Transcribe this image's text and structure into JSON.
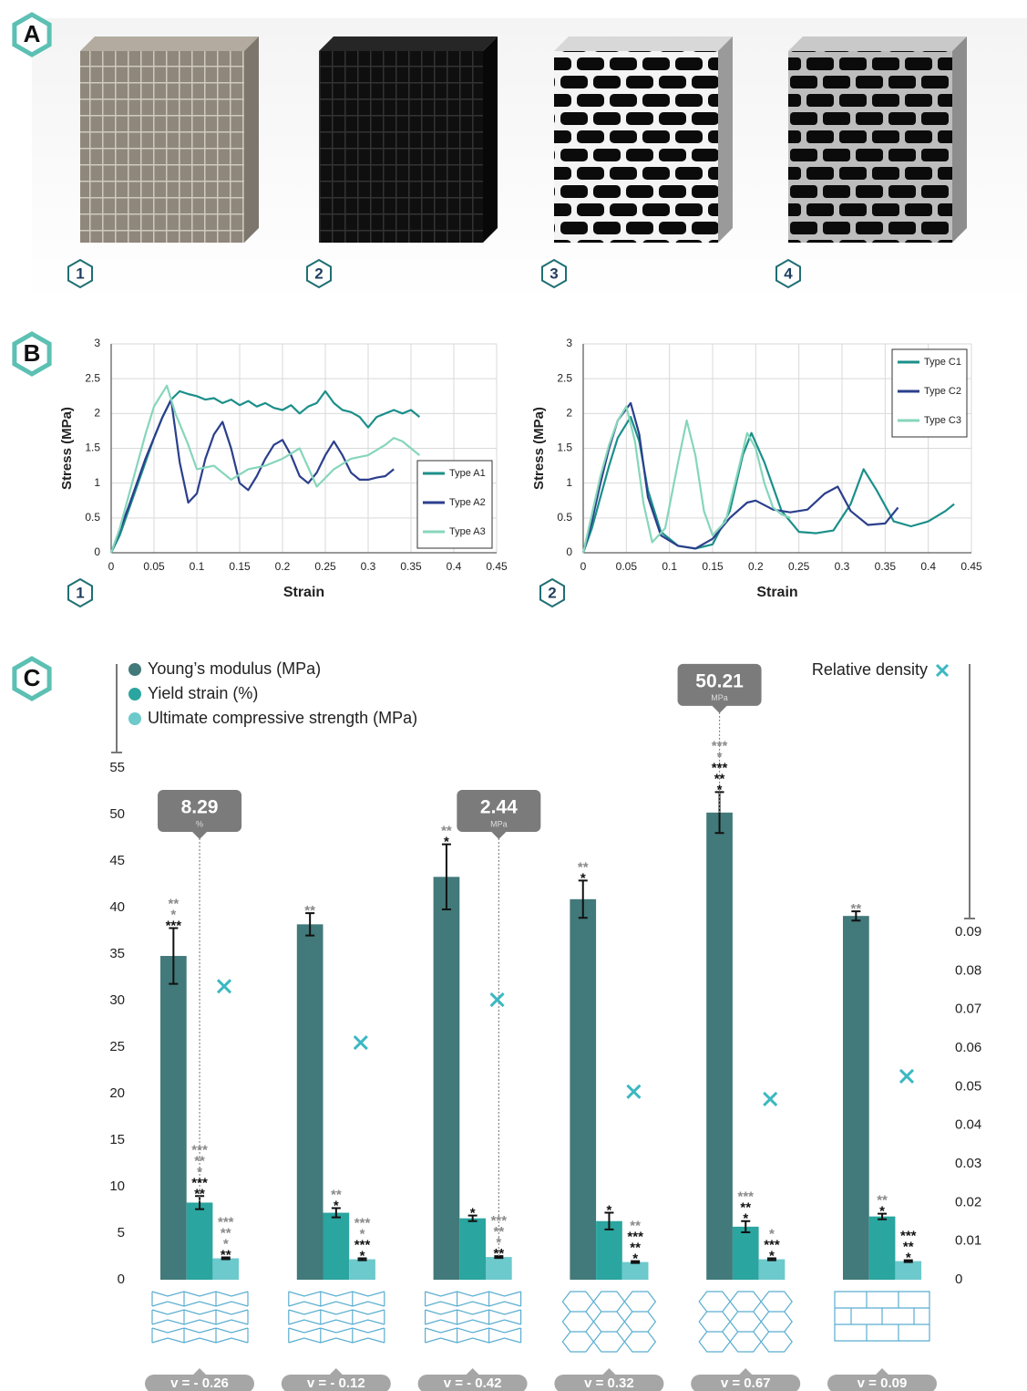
{
  "panel_labels": [
    "A",
    "B",
    "C"
  ],
  "photo_labels": [
    "1",
    "2",
    "3",
    "4"
  ],
  "chart_data": [
    {
      "type": "line",
      "label": "1",
      "xlabel": "Strain",
      "ylabel": "Stress (MPa)",
      "xlim": [
        0,
        0.45
      ],
      "ylim": [
        0,
        3
      ],
      "xticks": [
        0,
        0.05,
        0.1,
        0.15,
        0.2,
        0.25,
        0.3,
        0.35,
        0.4,
        0.45
      ],
      "yticks": [
        0,
        0.5,
        1,
        1.5,
        2,
        2.5,
        3
      ],
      "grid": true,
      "legend": "lower right",
      "series": [
        {
          "name": "Type A1",
          "color": "#1b8f8a",
          "x": [
            0,
            0.01,
            0.02,
            0.03,
            0.04,
            0.05,
            0.06,
            0.07,
            0.08,
            0.09,
            0.1,
            0.11,
            0.12,
            0.13,
            0.14,
            0.15,
            0.16,
            0.17,
            0.18,
            0.19,
            0.2,
            0.21,
            0.22,
            0.23,
            0.24,
            0.25,
            0.26,
            0.27,
            0.28,
            0.29,
            0.3,
            0.31,
            0.32,
            0.33,
            0.34,
            0.35,
            0.36
          ],
          "values": [
            0,
            0.25,
            0.6,
            0.95,
            1.3,
            1.65,
            1.95,
            2.2,
            2.32,
            2.28,
            2.25,
            2.2,
            2.22,
            2.15,
            2.2,
            2.12,
            2.18,
            2.1,
            2.15,
            2.08,
            2.05,
            2.12,
            2.0,
            2.1,
            2.15,
            2.32,
            2.15,
            2.05,
            2.02,
            1.95,
            1.8,
            1.95,
            2.0,
            2.05,
            2.0,
            2.05,
            1.95
          ]
        },
        {
          "name": "Type A2",
          "color": "#2b3f8c",
          "x": [
            0,
            0.02,
            0.04,
            0.06,
            0.07,
            0.08,
            0.09,
            0.1,
            0.11,
            0.12,
            0.13,
            0.14,
            0.15,
            0.16,
            0.17,
            0.18,
            0.19,
            0.2,
            0.21,
            0.22,
            0.23,
            0.24,
            0.25,
            0.26,
            0.27,
            0.28,
            0.29,
            0.3,
            0.31,
            0.32,
            0.33
          ],
          "values": [
            0,
            0.65,
            1.35,
            1.95,
            2.2,
            1.3,
            0.72,
            0.85,
            1.35,
            1.7,
            1.88,
            1.5,
            1.0,
            0.9,
            1.1,
            1.35,
            1.55,
            1.62,
            1.4,
            1.1,
            1.0,
            1.15,
            1.4,
            1.6,
            1.4,
            1.15,
            1.05,
            1.05,
            1.08,
            1.1,
            1.2
          ]
        },
        {
          "name": "Type A3",
          "color": "#86d6bb",
          "x": [
            0,
            0.01,
            0.02,
            0.03,
            0.04,
            0.05,
            0.065,
            0.075,
            0.09,
            0.1,
            0.12,
            0.14,
            0.16,
            0.18,
            0.2,
            0.22,
            0.24,
            0.26,
            0.28,
            0.3,
            0.32,
            0.33,
            0.34,
            0.36
          ],
          "values": [
            0,
            0.35,
            0.8,
            1.25,
            1.7,
            2.1,
            2.4,
            2.0,
            1.55,
            1.2,
            1.25,
            1.05,
            1.2,
            1.25,
            1.35,
            1.5,
            0.95,
            1.2,
            1.35,
            1.4,
            1.55,
            1.65,
            1.6,
            1.4
          ]
        }
      ]
    },
    {
      "type": "line",
      "label": "2",
      "xlabel": "Strain",
      "ylabel": "Stress (MPa)",
      "xlim": [
        0,
        0.45
      ],
      "ylim": [
        0,
        3
      ],
      "xticks": [
        0,
        0.05,
        0.1,
        0.15,
        0.2,
        0.25,
        0.3,
        0.35,
        0.4,
        0.45
      ],
      "yticks": [
        0,
        0.5,
        1,
        1.5,
        2,
        2.5,
        3
      ],
      "grid": true,
      "legend": "upper right",
      "series": [
        {
          "name": "Type C1",
          "color": "#1b8f8a",
          "x": [
            0,
            0.01,
            0.02,
            0.03,
            0.04,
            0.055,
            0.065,
            0.075,
            0.09,
            0.11,
            0.13,
            0.15,
            0.17,
            0.185,
            0.195,
            0.21,
            0.23,
            0.25,
            0.27,
            0.29,
            0.31,
            0.325,
            0.34,
            0.36,
            0.38,
            0.4,
            0.42,
            0.43
          ],
          "values": [
            0,
            0.35,
            0.8,
            1.25,
            1.65,
            1.95,
            1.6,
            0.9,
            0.3,
            0.1,
            0.06,
            0.12,
            0.6,
            1.4,
            1.72,
            1.3,
            0.6,
            0.3,
            0.28,
            0.32,
            0.7,
            1.2,
            0.9,
            0.45,
            0.38,
            0.45,
            0.6,
            0.7
          ]
        },
        {
          "name": "Type C2",
          "color": "#2b3f8c",
          "x": [
            0,
            0.01,
            0.02,
            0.03,
            0.04,
            0.055,
            0.065,
            0.075,
            0.09,
            0.11,
            0.13,
            0.15,
            0.17,
            0.19,
            0.2,
            0.22,
            0.24,
            0.26,
            0.28,
            0.295,
            0.31,
            0.33,
            0.35,
            0.365
          ],
          "values": [
            0,
            0.45,
            1.0,
            1.5,
            1.9,
            2.15,
            1.7,
            0.8,
            0.25,
            0.1,
            0.06,
            0.2,
            0.5,
            0.72,
            0.75,
            0.62,
            0.58,
            0.62,
            0.85,
            0.95,
            0.6,
            0.4,
            0.42,
            0.65
          ]
        },
        {
          "name": "Type C3",
          "color": "#86d6bb",
          "x": [
            0,
            0.01,
            0.02,
            0.03,
            0.04,
            0.05,
            0.06,
            0.07,
            0.08,
            0.095,
            0.11,
            0.12,
            0.13,
            0.14,
            0.15,
            0.165,
            0.18,
            0.19,
            0.2,
            0.21,
            0.22,
            0.23,
            0.24
          ],
          "values": [
            0,
            0.55,
            1.1,
            1.55,
            1.9,
            2.1,
            1.6,
            0.7,
            0.15,
            0.35,
            1.3,
            1.9,
            1.4,
            0.6,
            0.25,
            0.45,
            1.2,
            1.72,
            1.5,
            1.0,
            0.65,
            0.55,
            0.5
          ]
        }
      ]
    },
    {
      "type": "bar",
      "categories": [
        "v = - 0.26",
        "v = - 0.12",
        "v = - 0.42",
        "v = 0.32",
        "v = 0.67",
        "v = 0.09"
      ],
      "ylim": [
        0,
        55
      ],
      "yticks": [
        0,
        5,
        10,
        15,
        20,
        25,
        30,
        35,
        40,
        45,
        50,
        55
      ],
      "y2lim": [
        0,
        0.09
      ],
      "y2ticks": [
        0,
        0.01,
        0.02,
        0.03,
        0.04,
        0.05,
        0.06,
        0.07,
        0.08,
        0.09
      ],
      "series": [
        {
          "name": "Young’s modulus (MPa)",
          "color": "#42797a",
          "values": [
            34.8,
            38.2,
            43.3,
            40.9,
            50.21,
            39.1
          ],
          "errors": [
            3.0,
            1.2,
            3.5,
            2.0,
            2.2,
            0.5
          ],
          "callout_units": [
            null,
            null,
            null,
            null,
            "MPa",
            null
          ],
          "significance": [
            {
              "gray": [
                "**",
                "*"
              ],
              "black": [
                "***"
              ]
            },
            {
              "gray": [
                "**"
              ]
            },
            {
              "gray": [
                "**"
              ],
              "black": [
                "*"
              ]
            },
            {
              "gray": [
                "**"
              ],
              "black": [
                "*"
              ]
            },
            {
              "gray": [
                "***",
                "*"
              ],
              "black": [
                "***",
                "**",
                "*"
              ]
            },
            {
              "gray": [
                "**"
              ]
            }
          ]
        },
        {
          "name": "Yield strain (%)",
          "color": "#2aa59f",
          "values": [
            8.29,
            7.2,
            6.6,
            6.3,
            5.7,
            6.8
          ],
          "errors": [
            0.7,
            0.5,
            0.3,
            0.9,
            0.6,
            0.3
          ],
          "callout_units": [
            "%",
            null,
            null,
            null,
            null,
            null
          ],
          "significance": [
            {
              "gray": [
                "***",
                "**",
                "*"
              ],
              "black": [
                "***",
                "**"
              ]
            },
            {
              "gray": [
                "**"
              ],
              "black": [
                "*"
              ]
            },
            {
              "black": [
                "*"
              ]
            },
            {
              "black": [
                "*"
              ]
            },
            {
              "gray": [
                "***"
              ],
              "black": [
                "**",
                "*"
              ]
            },
            {
              "gray": [
                "**"
              ],
              "black": [
                "*"
              ]
            }
          ]
        },
        {
          "name": "Ultimate compressive strength (MPa)",
          "color": "#6cc9cc",
          "values": [
            2.3,
            2.2,
            2.44,
            1.9,
            2.2,
            2.0
          ],
          "errors": [
            0.1,
            0.1,
            0.1,
            0.1,
            0.1,
            0.1
          ],
          "callout_units": [
            null,
            null,
            "MPa",
            null,
            null,
            null
          ],
          "significance": [
            {
              "gray": [
                "***",
                "**",
                "*"
              ],
              "black": [
                "**"
              ]
            },
            {
              "gray": [
                "***",
                "*"
              ],
              "black": [
                "***",
                "*"
              ]
            },
            {
              "gray": [
                "***",
                "**",
                "*"
              ],
              "black": [
                "**"
              ]
            },
            {
              "gray": [
                "**"
              ],
              "black": [
                "***",
                "**",
                "*"
              ]
            },
            {
              "gray": [
                "*"
              ],
              "black": [
                "***",
                "*"
              ]
            },
            {
              "black": [
                "***",
                "**",
                "*"
              ]
            }
          ]
        },
        {
          "name": "Relative density",
          "color": "#3bb8c2",
          "axis": "y2",
          "marker": "x",
          "values": [
            0.076,
            0.0614,
            0.0725,
            0.0487,
            0.0468,
            0.0527
          ]
        }
      ]
    }
  ]
}
